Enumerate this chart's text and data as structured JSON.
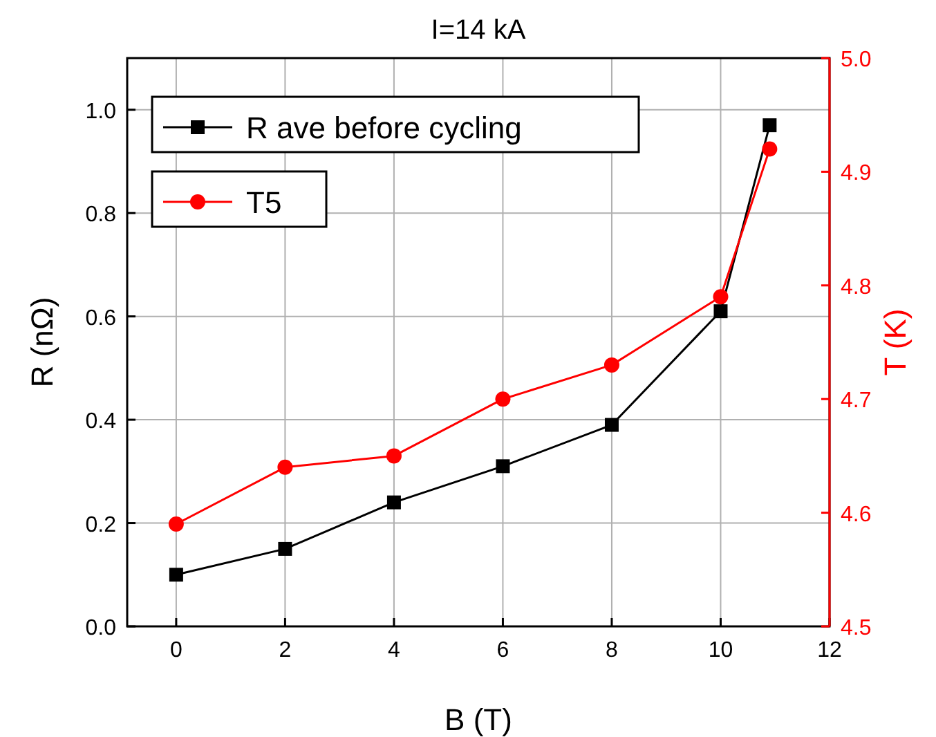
{
  "chart_data": {
    "type": "line",
    "title": "I=14 kA",
    "xlabel": "B (T)",
    "ylabel": "R (nΩ)",
    "y2label": "T (K)",
    "x": [
      0,
      2,
      4,
      6,
      8,
      10,
      10.9
    ],
    "series": [
      {
        "name": "R ave before cycling",
        "color": "#000000",
        "marker": "square",
        "values": [
          0.1,
          0.15,
          0.24,
          0.31,
          0.39,
          0.61,
          0.97
        ]
      },
      {
        "name": "T5",
        "color": "#ff0000",
        "marker": "circle",
        "axis": "y2",
        "values": [
          4.59,
          4.64,
          4.65,
          4.7,
          4.73,
          4.79,
          4.92
        ]
      }
    ],
    "xlim": [
      -0.9,
      12
    ],
    "xticks": [
      0,
      2,
      4,
      6,
      8,
      10,
      12
    ],
    "ylim": [
      0,
      1.1
    ],
    "yticks": [
      {
        "value": 0,
        "label": "0.0"
      },
      {
        "value": 0.2,
        "label": "0.2"
      },
      {
        "value": 0.4,
        "label": "0.4"
      },
      {
        "value": 0.6,
        "label": "0.6"
      },
      {
        "value": 0.8,
        "label": "0.8"
      },
      {
        "value": 1,
        "label": "1.0"
      }
    ],
    "y2lim": [
      4.5,
      5.0
    ],
    "y2ticks": [
      {
        "value": 4.5,
        "label": "4.5"
      },
      {
        "value": 4.6,
        "label": "4.6"
      },
      {
        "value": 4.7,
        "label": "4.7"
      },
      {
        "value": 4.8,
        "label": "4.8"
      },
      {
        "value": 4.9,
        "label": "4.9"
      },
      {
        "value": 5.0,
        "label": "5.0"
      }
    ],
    "grid": true,
    "legend": "top left",
    "line_style": "solid"
  }
}
